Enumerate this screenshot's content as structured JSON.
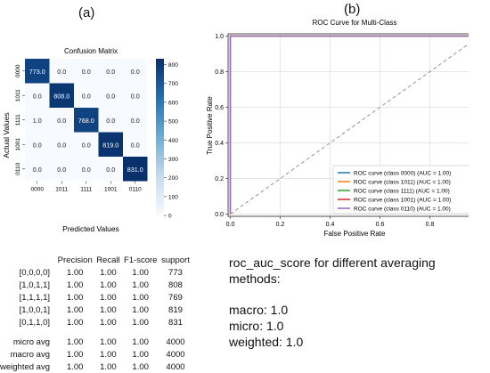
{
  "labels": {
    "a": "(a)",
    "b": "(b)"
  },
  "confusion_matrix": {
    "title": "Confusion Matrix",
    "xlabel": "Predicted Values",
    "ylabel": "Actual Values",
    "row_labels": [
      "0000",
      "1011",
      "1111",
      "1001",
      "0110"
    ],
    "col_labels": [
      "0000",
      "1011",
      "1111",
      "1001",
      "0110"
    ],
    "cells": [
      [
        "773.0",
        "0.0",
        "0.0",
        "0.0",
        "0.0"
      ],
      [
        "0.0",
        "808.0",
        "0.0",
        "0.0",
        "0.0"
      ],
      [
        "1.0",
        "0.0",
        "768.0",
        "0.0",
        "0.0"
      ],
      [
        "0.0",
        "0.0",
        "0.0",
        "819.0",
        "0.0"
      ],
      [
        "0.0",
        "0.0",
        "0.0",
        "0.0",
        "831.0"
      ]
    ],
    "colorbar_ticks": [
      "0",
      "100",
      "200",
      "300",
      "400",
      "500",
      "600",
      "700",
      "800"
    ]
  },
  "chart_data": [
    {
      "type": "heatmap",
      "title": "Confusion Matrix",
      "xlabel": "Predicted Values",
      "ylabel": "Actual Values",
      "x": [
        "0000",
        "1011",
        "1111",
        "1001",
        "0110"
      ],
      "y": [
        "0000",
        "1011",
        "1111",
        "1001",
        "0110"
      ],
      "values": [
        [
          773,
          0,
          0,
          0,
          0
        ],
        [
          0,
          808,
          0,
          0,
          0
        ],
        [
          1,
          0,
          768,
          0,
          0
        ],
        [
          0,
          0,
          0,
          819,
          0
        ],
        [
          0,
          0,
          0,
          0,
          831
        ]
      ],
      "colorbar_range": [
        0,
        831
      ],
      "colormap": "blues"
    },
    {
      "type": "line",
      "title": "ROC Curve for Multi-Class",
      "xlabel": "False Positive Rate",
      "ylabel": "True Positive Rate",
      "xlim": [
        0.0,
        1.0
      ],
      "ylim": [
        0.0,
        1.0
      ],
      "x_ticks": [
        "0.0",
        "0.2",
        "0.4",
        "0.6",
        "0.8",
        "1.0"
      ],
      "y_ticks": [
        "0.0",
        "0.2",
        "0.4",
        "0.6",
        "0.8",
        "1.0"
      ],
      "grid": true,
      "legend_position": "bottom-right",
      "series": [
        {
          "name": "ROC curve (class 0000) (AUC = 1.00)",
          "color": "#1f77b4",
          "x": [
            0.0,
            0.0,
            1.0
          ],
          "y": [
            0.0,
            1.0,
            1.0
          ]
        },
        {
          "name": "ROC curve (class 1011) (AUC = 1.00)",
          "color": "#ff7f0e",
          "x": [
            0.0,
            0.0,
            1.0
          ],
          "y": [
            0.0,
            1.0,
            1.0
          ]
        },
        {
          "name": "ROC curve (class 1111) (AUC = 1.00)",
          "color": "#2ca02c",
          "x": [
            0.0,
            0.0,
            1.0
          ],
          "y": [
            0.0,
            1.0,
            1.0
          ]
        },
        {
          "name": "ROC curve (class 1001) (AUC = 1.00)",
          "color": "#d62728",
          "x": [
            0.0,
            0.0,
            1.0
          ],
          "y": [
            0.0,
            1.0,
            1.0
          ]
        },
        {
          "name": "ROC curve (class 0110) (AUC = 1.00)",
          "color": "#9467bd",
          "x": [
            0.0,
            0.0,
            1.0
          ],
          "y": [
            0.0,
            1.0,
            1.0
          ]
        }
      ],
      "diagonal": {
        "x": [
          0,
          1
        ],
        "y": [
          0,
          1
        ],
        "style": "dashed",
        "color": "#888888"
      }
    }
  ],
  "report": {
    "headers": [
      "",
      "Precision",
      "Recall",
      "F1-score",
      "support"
    ],
    "rows": [
      [
        "[0,0,0,0]",
        "1.00",
        "1.00",
        "1.00",
        "773"
      ],
      [
        "[1,0,1,1]",
        "1.00",
        "1.00",
        "1.00",
        "808"
      ],
      [
        "[1,1,1,1]",
        "1.00",
        "1.00",
        "1.00",
        "769"
      ],
      [
        "[1,0,0,1]",
        "1.00",
        "1.00",
        "1.00",
        "819"
      ],
      [
        "[0,1,1,0]",
        "1.00",
        "1.00",
        "1.00",
        "831"
      ]
    ],
    "averages": [
      [
        "micro avg",
        "1.00",
        "1.00",
        "1.00",
        "4000"
      ],
      [
        "macro avg",
        "1.00",
        "1.00",
        "1.00",
        "4000"
      ],
      [
        "weighted avg",
        "1.00",
        "1.00",
        "1.00",
        "4000"
      ]
    ]
  },
  "roc_scores": {
    "heading": "roc_auc_score for different averaging methods:",
    "macro": "macro: 1.0",
    "micro": "micro: 1.0",
    "weighted": "weighted: 1.0"
  }
}
